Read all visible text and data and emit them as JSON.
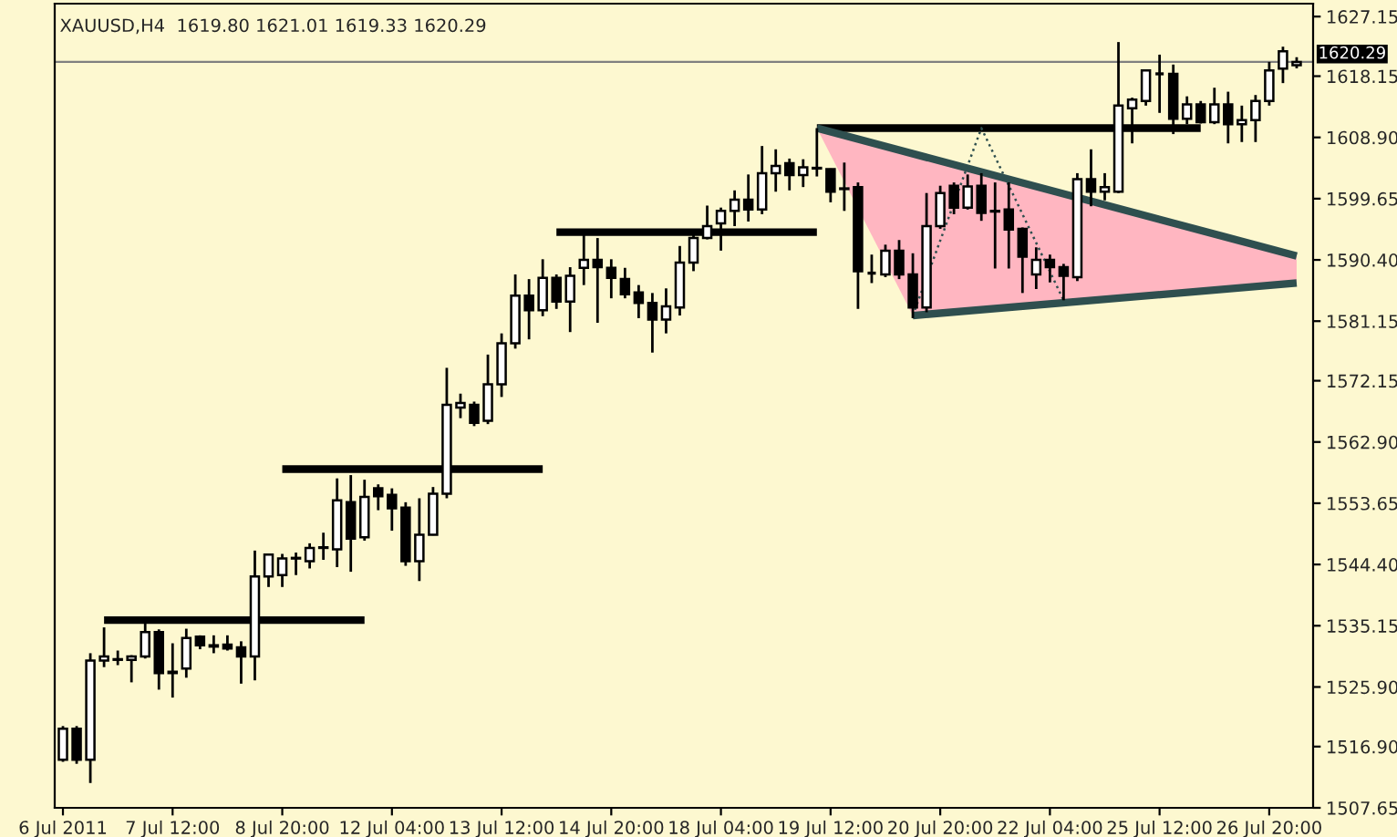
{
  "chart_data": {
    "type": "candlestick",
    "title": "XAUUSD,H4  1619.80 1621.01 1619.33 1620.29",
    "color": "#000000",
    "categories": [
      "6 Jul 2011",
      null,
      null,
      null,
      null,
      null,
      null,
      null,
      "7 Jul 12:00",
      null,
      null,
      null,
      null,
      null,
      null,
      null,
      "8 Jul 20:00",
      null,
      null,
      null,
      null,
      null,
      null,
      null,
      "12 Jul 04:00",
      null,
      null,
      null,
      null,
      null,
      null,
      null,
      "13 Jul 12:00",
      null,
      null,
      null,
      null,
      null,
      null,
      null,
      "14 Jul 20:00",
      null,
      null,
      null,
      null,
      null,
      null,
      null,
      "18 Jul 04:00",
      null,
      null,
      null,
      null,
      null,
      null,
      null,
      "19 Jul 12:00",
      null,
      null,
      null,
      null,
      null,
      null,
      null,
      "20 Jul 20:00",
      null,
      null,
      null,
      null,
      null,
      null,
      null,
      "22 Jul 04:00",
      null,
      null,
      null,
      null,
      null,
      null,
      null,
      "25 Jul 12:00",
      null,
      null,
      null,
      null,
      null,
      null,
      null,
      "26 Jul 20:00",
      null,
      null
    ],
    "ohlc": [
      [
        1514.9,
        1520.0,
        1514.6,
        1519.6
      ],
      [
        1519.6,
        1520.0,
        1514.3,
        1514.9
      ],
      [
        1514.9,
        1531.0,
        1511.4,
        1529.9
      ],
      [
        1529.9,
        1534.9,
        1528.9,
        1530.5
      ],
      [
        1530.1,
        1531.4,
        1529.2,
        1530.0
      ],
      [
        1530.0,
        1530.7,
        1526.6,
        1530.5
      ],
      [
        1530.5,
        1535.8,
        1530.2,
        1534.2
      ],
      [
        1534.2,
        1534.6,
        1525.5,
        1528.0
      ],
      [
        1528.0,
        1532.5,
        1524.3,
        1528.2
      ],
      [
        1528.7,
        1534.7,
        1527.3,
        1533.3
      ],
      [
        1533.5,
        1533.7,
        1531.6,
        1532.2
      ],
      [
        1532.2,
        1533.7,
        1531.0,
        1532.0
      ],
      [
        1532.3,
        1533.7,
        1531.4,
        1531.7
      ],
      [
        1531.9,
        1532.8,
        1526.4,
        1530.5
      ],
      [
        1530.5,
        1546.5,
        1526.9,
        1542.6
      ],
      [
        1542.6,
        1546.0,
        1541.0,
        1545.9
      ],
      [
        1542.8,
        1546.0,
        1541.0,
        1545.3
      ],
      [
        1545.3,
        1546.2,
        1542.8,
        1545.4
      ],
      [
        1544.9,
        1547.6,
        1543.8,
        1546.9
      ],
      [
        1546.9,
        1549.2,
        1545.1,
        1547.0
      ],
      [
        1546.7,
        1557.4,
        1544.0,
        1554.1
      ],
      [
        1553.8,
        1557.9,
        1543.3,
        1548.3
      ],
      [
        1548.5,
        1557.2,
        1548.0,
        1554.6
      ],
      [
        1555.9,
        1556.5,
        1552.6,
        1554.7
      ],
      [
        1554.9,
        1555.9,
        1549.5,
        1552.9
      ],
      [
        1553.0,
        1553.8,
        1544.2,
        1544.9
      ],
      [
        1544.9,
        1554.4,
        1541.9,
        1548.9
      ],
      [
        1548.9,
        1556.1,
        1548.8,
        1555.1
      ],
      [
        1555.1,
        1574.1,
        1554.4,
        1568.5
      ],
      [
        1568.1,
        1570.2,
        1566.5,
        1568.8
      ],
      [
        1568.5,
        1569.0,
        1565.3,
        1565.8
      ],
      [
        1566.1,
        1576.1,
        1565.6,
        1571.6
      ],
      [
        1571.6,
        1579.3,
        1569.7,
        1577.8
      ],
      [
        1577.8,
        1588.2,
        1577.0,
        1585.0
      ],
      [
        1585.0,
        1587.5,
        1578.4,
        1582.8
      ],
      [
        1582.8,
        1590.5,
        1581.9,
        1587.7
      ],
      [
        1587.7,
        1588.2,
        1583.0,
        1584.1
      ],
      [
        1584.1,
        1589.3,
        1579.5,
        1588.0
      ],
      [
        1589.2,
        1594.2,
        1586.6,
        1590.4
      ],
      [
        1590.4,
        1593.7,
        1580.9,
        1589.3
      ],
      [
        1589.2,
        1590.5,
        1584.6,
        1587.7
      ],
      [
        1587.5,
        1589.2,
        1584.6,
        1585.2
      ],
      [
        1585.5,
        1586.6,
        1581.6,
        1583.9
      ],
      [
        1583.9,
        1585.4,
        1576.4,
        1581.4
      ],
      [
        1581.4,
        1586.1,
        1579.3,
        1583.4
      ],
      [
        1583.2,
        1592.5,
        1582.0,
        1590.0
      ],
      [
        1590.0,
        1594.2,
        1588.7,
        1593.7
      ],
      [
        1593.7,
        1598.6,
        1593.5,
        1595.5
      ],
      [
        1595.9,
        1598.3,
        1591.8,
        1597.8
      ],
      [
        1597.8,
        1600.9,
        1595.5,
        1599.5
      ],
      [
        1599.5,
        1603.3,
        1596.2,
        1598.0
      ],
      [
        1598.0,
        1607.6,
        1597.3,
        1603.5
      ],
      [
        1603.5,
        1607.1,
        1600.7,
        1604.6
      ],
      [
        1605.0,
        1605.7,
        1600.9,
        1603.2
      ],
      [
        1603.2,
        1605.6,
        1601.4,
        1604.4
      ],
      [
        1604.2,
        1610.3,
        1603.0,
        1604.3
      ],
      [
        1604.1,
        1604.2,
        1599.1,
        1600.7
      ],
      [
        1601.2,
        1605.1,
        1597.8,
        1601.1
      ],
      [
        1601.4,
        1602.1,
        1583.0,
        1588.7
      ],
      [
        1588.4,
        1591.2,
        1586.9,
        1588.4
      ],
      [
        1588.2,
        1592.7,
        1587.8,
        1591.8
      ],
      [
        1591.8,
        1593.4,
        1587.5,
        1588.2
      ],
      [
        1588.2,
        1591.4,
        1581.6,
        1583.2
      ],
      [
        1583.2,
        1600.5,
        1582.5,
        1595.5
      ],
      [
        1595.5,
        1601.6,
        1595.1,
        1600.5
      ],
      [
        1601.6,
        1602.1,
        1597.3,
        1598.3
      ],
      [
        1598.3,
        1603.3,
        1598.0,
        1601.5
      ],
      [
        1601.6,
        1603.5,
        1596.3,
        1597.5
      ],
      [
        1597.8,
        1602.1,
        1589.1,
        1597.7
      ],
      [
        1598.0,
        1602.1,
        1589.1,
        1595.0
      ],
      [
        1595.1,
        1595.3,
        1585.4,
        1590.9
      ],
      [
        1588.2,
        1592.3,
        1586.0,
        1590.4
      ],
      [
        1590.4,
        1591.2,
        1587.0,
        1589.3
      ],
      [
        1589.3,
        1589.8,
        1584.3,
        1588.0
      ],
      [
        1587.8,
        1603.5,
        1587.2,
        1602.6
      ],
      [
        1602.6,
        1607.1,
        1598.5,
        1600.7
      ],
      [
        1600.7,
        1603.5,
        1599.4,
        1601.4
      ],
      [
        1600.7,
        1623.3,
        1600.5,
        1613.7
      ],
      [
        1613.3,
        1614.9,
        1608.0,
        1614.6
      ],
      [
        1614.4,
        1619.1,
        1613.7,
        1619.0
      ],
      [
        1618.5,
        1621.4,
        1612.6,
        1618.5
      ],
      [
        1618.5,
        1619.9,
        1609.4,
        1611.7
      ],
      [
        1611.7,
        1615.1,
        1610.9,
        1613.9
      ],
      [
        1613.9,
        1614.4,
        1611.0,
        1611.2
      ],
      [
        1611.2,
        1616.4,
        1610.9,
        1613.9
      ],
      [
        1613.9,
        1615.8,
        1608.0,
        1610.9
      ],
      [
        1610.9,
        1613.7,
        1608.2,
        1611.5
      ],
      [
        1611.5,
        1615.3,
        1608.2,
        1614.4
      ],
      [
        1614.4,
        1620.3,
        1613.7,
        1619.0
      ],
      [
        1619.3,
        1622.6,
        1617.1,
        1621.9
      ],
      [
        1619.8,
        1621.01,
        1619.33,
        1620.29
      ]
    ],
    "series": [
      {
        "type": "line",
        "color": "#000000",
        "line_style": "solid",
        "values": [
          null,
          null,
          null,
          1536.0,
          null,
          null,
          null,
          null,
          null,
          null,
          null,
          null,
          null,
          null,
          null,
          null,
          null,
          null,
          null,
          null,
          null,
          null,
          1536.0,
          null,
          null,
          null,
          null,
          null,
          null,
          null,
          null,
          null,
          null,
          null,
          null,
          null,
          null,
          null,
          null,
          null,
          null,
          null,
          null,
          null,
          null,
          null,
          null,
          null,
          null,
          null,
          null,
          null,
          null,
          null,
          null,
          null,
          null,
          null,
          null,
          null,
          null,
          null,
          null,
          null,
          null,
          null,
          null,
          null,
          null,
          null,
          null,
          null,
          null,
          null,
          null,
          null,
          null,
          null,
          null,
          null,
          null,
          null,
          null,
          null,
          null,
          null,
          null,
          null,
          null,
          null,
          null
        ]
      },
      {
        "type": "line",
        "color": "#000000",
        "line_style": "solid",
        "values": [
          null,
          null,
          null,
          null,
          null,
          null,
          null,
          null,
          null,
          null,
          null,
          null,
          null,
          null,
          null,
          null,
          1558.8,
          null,
          null,
          null,
          null,
          null,
          null,
          null,
          null,
          null,
          null,
          null,
          null,
          null,
          null,
          null,
          null,
          null,
          null,
          1558.8,
          null,
          null,
          null,
          null,
          null,
          null,
          null,
          null,
          null,
          null,
          null,
          null,
          null,
          null,
          null,
          null,
          null,
          null,
          null,
          null,
          null,
          null,
          null,
          null,
          null,
          null,
          null,
          null,
          null,
          null,
          null,
          null,
          null,
          null,
          null,
          null,
          null,
          null,
          null,
          null,
          null,
          null,
          null,
          null,
          null,
          null,
          null,
          null,
          null,
          null,
          null,
          null,
          null,
          null,
          null
        ]
      },
      {
        "type": "line",
        "color": "#000000",
        "line_style": "solid",
        "values": [
          null,
          null,
          null,
          null,
          null,
          null,
          null,
          null,
          null,
          null,
          null,
          null,
          null,
          null,
          null,
          null,
          null,
          null,
          null,
          null,
          null,
          null,
          null,
          null,
          null,
          null,
          null,
          null,
          null,
          null,
          null,
          null,
          null,
          null,
          null,
          null,
          1594.6,
          null,
          null,
          null,
          null,
          null,
          null,
          null,
          null,
          null,
          null,
          null,
          null,
          null,
          null,
          null,
          null,
          null,
          null,
          1594.6,
          null,
          null,
          null,
          null,
          null,
          null,
          null,
          null,
          null,
          null,
          null,
          null,
          null,
          null,
          null,
          null,
          null,
          null,
          null,
          null,
          null,
          null,
          null,
          null,
          null,
          null,
          null,
          null,
          null,
          null,
          null,
          null,
          null,
          null,
          null
        ]
      },
      {
        "type": "line",
        "color": "#000000",
        "line_style": "solid",
        "values": [
          null,
          null,
          null,
          null,
          null,
          null,
          null,
          null,
          null,
          null,
          null,
          null,
          null,
          null,
          null,
          null,
          null,
          null,
          null,
          null,
          null,
          null,
          null,
          null,
          null,
          null,
          null,
          null,
          null,
          null,
          null,
          null,
          null,
          null,
          null,
          null,
          null,
          null,
          null,
          null,
          null,
          null,
          null,
          null,
          null,
          null,
          null,
          null,
          null,
          null,
          null,
          null,
          null,
          null,
          null,
          1610.3,
          null,
          null,
          null,
          null,
          null,
          null,
          null,
          null,
          null,
          null,
          null,
          null,
          null,
          null,
          null,
          null,
          null,
          null,
          null,
          null,
          null,
          null,
          null,
          null,
          null,
          null,
          null,
          1610.3,
          null,
          null,
          null,
          null,
          null,
          null,
          null
        ]
      },
      {
        "type": "line",
        "color": "#2f4f4f",
        "line_style": "solid",
        "values": [
          null,
          null,
          null,
          null,
          null,
          null,
          null,
          null,
          null,
          null,
          null,
          null,
          null,
          null,
          null,
          null,
          null,
          null,
          null,
          null,
          null,
          null,
          null,
          null,
          null,
          null,
          null,
          null,
          null,
          null,
          null,
          null,
          null,
          null,
          null,
          null,
          null,
          null,
          null,
          null,
          null,
          null,
          null,
          null,
          null,
          null,
          null,
          null,
          null,
          null,
          null,
          null,
          null,
          null,
          null,
          1610.3,
          null,
          null,
          null,
          null,
          null,
          null,
          null,
          null,
          null,
          null,
          null,
          null,
          null,
          null,
          null,
          null,
          null,
          null,
          null,
          null,
          null,
          null,
          null,
          null,
          null,
          null,
          null,
          null,
          null,
          null,
          null,
          null,
          null,
          null,
          1591.0
        ]
      },
      {
        "type": "line",
        "color": "#2f4f4f",
        "line_style": "solid",
        "values": [
          null,
          null,
          null,
          null,
          null,
          null,
          null,
          null,
          null,
          null,
          null,
          null,
          null,
          null,
          null,
          null,
          null,
          null,
          null,
          null,
          null,
          null,
          null,
          null,
          null,
          null,
          null,
          null,
          null,
          null,
          null,
          null,
          null,
          null,
          null,
          null,
          null,
          null,
          null,
          null,
          null,
          null,
          null,
          null,
          null,
          null,
          null,
          null,
          null,
          null,
          null,
          null,
          null,
          null,
          null,
          null,
          null,
          null,
          null,
          null,
          null,
          null,
          1582.0,
          null,
          null,
          null,
          null,
          null,
          null,
          null,
          null,
          null,
          null,
          null,
          null,
          null,
          null,
          null,
          null,
          null,
          null,
          null,
          null,
          null,
          null,
          null,
          null,
          null,
          null,
          null,
          1586.9
        ]
      },
      {
        "type": "line",
        "color": "#2f4f4f",
        "line_style": "dotted",
        "values": [
          null,
          null,
          null,
          null,
          null,
          null,
          null,
          null,
          null,
          null,
          null,
          null,
          null,
          null,
          null,
          null,
          null,
          null,
          null,
          null,
          null,
          null,
          null,
          null,
          null,
          null,
          null,
          null,
          null,
          null,
          null,
          null,
          null,
          null,
          null,
          null,
          null,
          null,
          null,
          null,
          null,
          null,
          null,
          null,
          null,
          null,
          null,
          null,
          null,
          null,
          null,
          null,
          null,
          null,
          null,
          null,
          null,
          null,
          null,
          null,
          null,
          null,
          1582.0,
          null,
          null,
          null,
          null,
          1610.3,
          null,
          null,
          null,
          null,
          null,
          1584.3,
          null,
          null,
          null,
          null,
          null,
          null,
          null,
          null,
          null,
          null,
          null,
          null,
          null,
          null,
          null,
          null,
          null
        ]
      }
    ],
    "ref_lines": [
      {
        "axis": "y",
        "value": 1620.29,
        "label": "1620.29",
        "color": "#808080"
      }
    ],
    "ylim": [
      1507.65,
      1629.1
    ],
    "yticks": [
      {
        "value": 1627.15,
        "label": "1627.15"
      },
      {
        "value": 1618.15,
        "label": "1618.15"
      },
      {
        "value": 1608.9,
        "label": "1608.90"
      },
      {
        "value": 1599.65,
        "label": "1599.65"
      },
      {
        "value": 1590.4,
        "label": "1590.40"
      },
      {
        "value": 1581.15,
        "label": "1581.15"
      },
      {
        "value": 1572.15,
        "label": "1572.15"
      },
      {
        "value": 1562.9,
        "label": "1562.90"
      },
      {
        "value": 1553.65,
        "label": "1553.65"
      },
      {
        "value": 1544.4,
        "label": "1544.40"
      },
      {
        "value": 1535.15,
        "label": "1535.15"
      },
      {
        "value": 1525.9,
        "label": "1525.90"
      },
      {
        "value": 1516.9,
        "label": "1516.90"
      },
      {
        "value": 1507.65,
        "label": "1507.65"
      }
    ],
    "grid": false
  }
}
